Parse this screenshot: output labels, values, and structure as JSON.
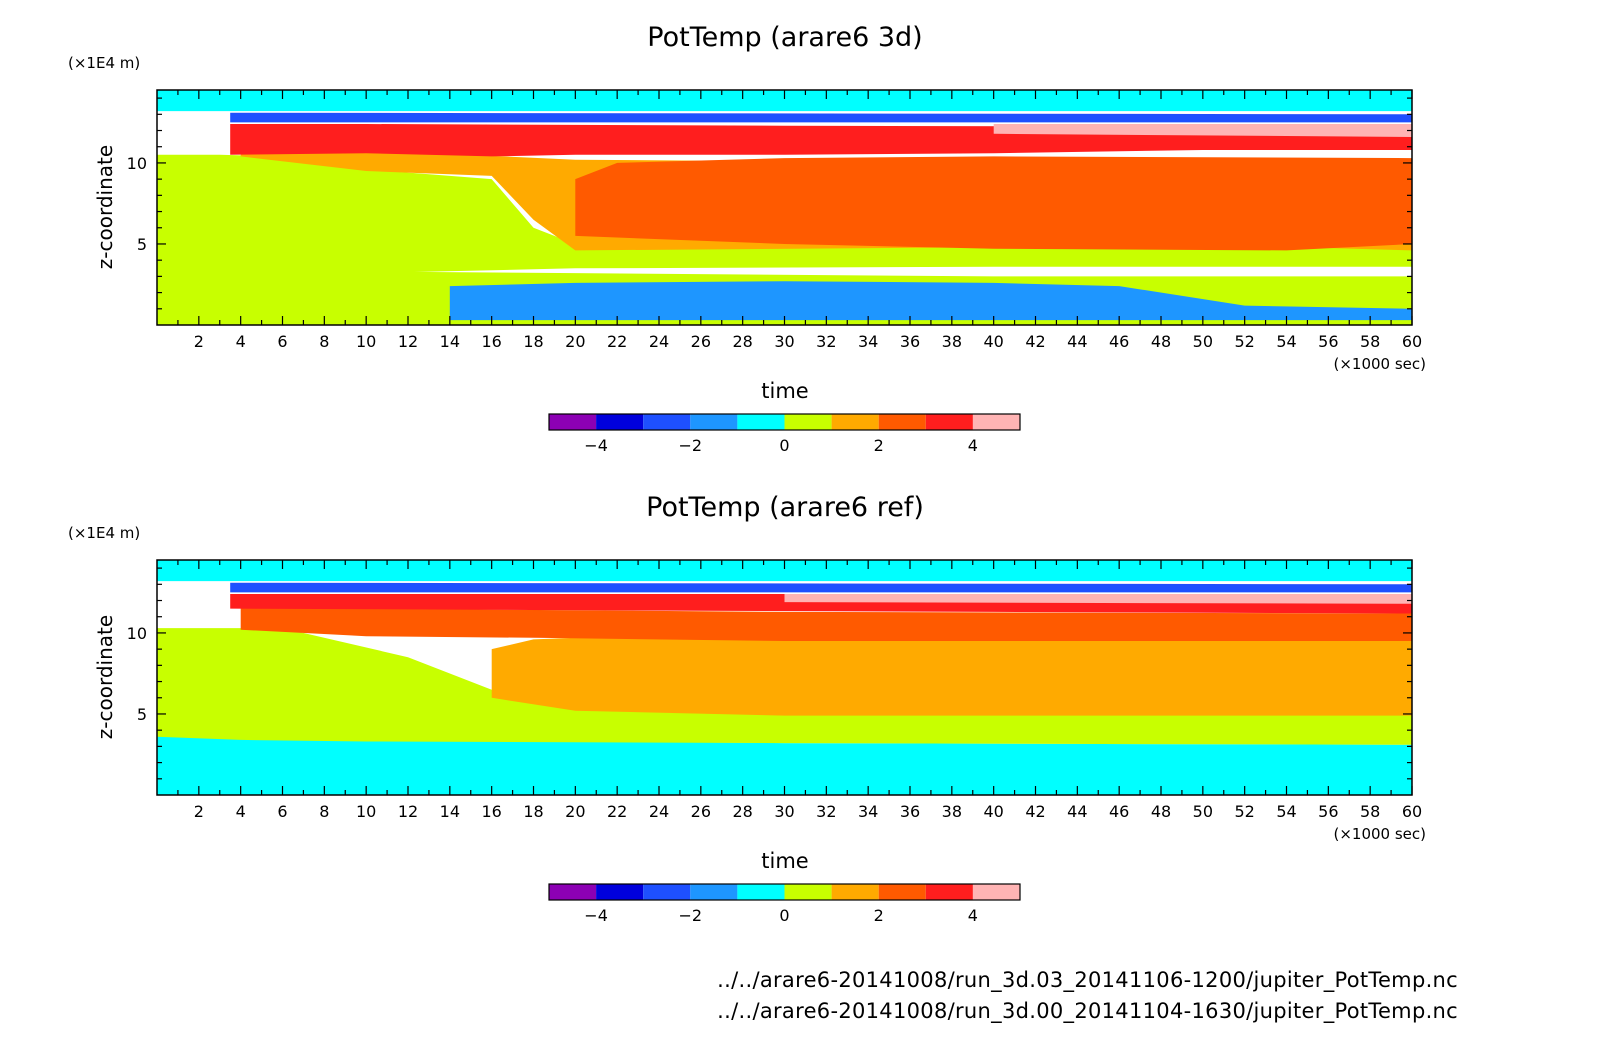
{
  "chart_data": [
    {
      "type": "heatmap",
      "title": "PotTemp (arare6 3d)",
      "ylabel": "z-coordinate",
      "yunit": "(×1E4 m)",
      "xlabel": "time",
      "xunit": "(×1000 sec)",
      "xlim": [
        0,
        60
      ],
      "ylim": [
        0,
        14.5
      ],
      "xticks": [
        2,
        4,
        6,
        8,
        10,
        12,
        14,
        16,
        18,
        20,
        22,
        24,
        26,
        28,
        30,
        32,
        34,
        36,
        38,
        40,
        42,
        44,
        46,
        48,
        50,
        52,
        54,
        56,
        58,
        60
      ],
      "yticks": [
        5,
        10
      ],
      "colorbar": {
        "ticks": [
          -4,
          -2,
          0,
          2,
          4
        ],
        "levels": [
          -5,
          -4,
          -3,
          -2,
          -1,
          0,
          1,
          2,
          3,
          4,
          5
        ],
        "colors": [
          "#8c00b4",
          "#0000dc",
          "#1e50ff",
          "#1e96ff",
          "#00ffff",
          "#c8ff00",
          "#ffaa00",
          "#ff5a00",
          "#ff1e1e",
          "#ffb4b4"
        ]
      },
      "regions": [
        {
          "value": 0.5,
          "note": "near-surface layer z<3"
        },
        {
          "value": -1.5,
          "note": "t>14, z 0.3-2.5"
        },
        {
          "value": 0.5,
          "note": "early lower-mid column"
        },
        {
          "value": 1.5,
          "note": "mid column z 4-9"
        },
        {
          "value": 2.5,
          "note": "t>20, z 5-11"
        },
        {
          "value": 3.5,
          "note": "t>16, z 10-12.3"
        },
        {
          "value": 4.5,
          "note": "t>40, thin layer z~12.2"
        },
        {
          "value": -2.5,
          "note": "inversion z~12.8"
        },
        {
          "value": -0.5,
          "note": "upper layer z>13"
        }
      ]
    },
    {
      "type": "heatmap",
      "title": "PotTemp (arare6 ref)",
      "ylabel": "z-coordinate",
      "yunit": "(×1E4 m)",
      "xlabel": "time",
      "xunit": "(×1000 sec)",
      "xlim": [
        0,
        60
      ],
      "ylim": [
        0,
        14.5
      ],
      "xticks": [
        2,
        4,
        6,
        8,
        10,
        12,
        14,
        16,
        18,
        20,
        22,
        24,
        26,
        28,
        30,
        32,
        34,
        36,
        38,
        40,
        42,
        44,
        46,
        48,
        50,
        52,
        54,
        56,
        58,
        60
      ],
      "yticks": [
        5,
        10
      ],
      "colorbar": {
        "ticks": [
          -4,
          -2,
          0,
          2,
          4
        ],
        "levels": [
          -5,
          -4,
          -3,
          -2,
          -1,
          0,
          1,
          2,
          3,
          4,
          5
        ],
        "colors": [
          "#8c00b4",
          "#0000dc",
          "#1e50ff",
          "#1e96ff",
          "#00ffff",
          "#c8ff00",
          "#ffaa00",
          "#ff5a00",
          "#ff1e1e",
          "#ffb4b4"
        ]
      },
      "regions": [
        {
          "value": -0.5,
          "note": "near-surface layer z<3.2"
        },
        {
          "value": 0.5,
          "note": "lower-mid column z 3-5"
        },
        {
          "value": 1.5,
          "note": "t>20, z 5-9.5"
        },
        {
          "value": 2.5,
          "note": "z 9.5-11.5"
        },
        {
          "value": 3.5,
          "note": "z 11.5-12.4"
        },
        {
          "value": 4.5,
          "note": "t>30, z~12.3"
        },
        {
          "value": -2.5,
          "note": "inversion z~12.8"
        },
        {
          "value": -0.5,
          "note": "upper layer z>13"
        }
      ]
    }
  ],
  "files": [
    "../../arare6-20141008/run_3d.03_20141106-1200/jupiter_PotTemp.nc",
    "../../arare6-20141008/run_3d.00_20141104-1630/jupiter_PotTemp.nc"
  ]
}
